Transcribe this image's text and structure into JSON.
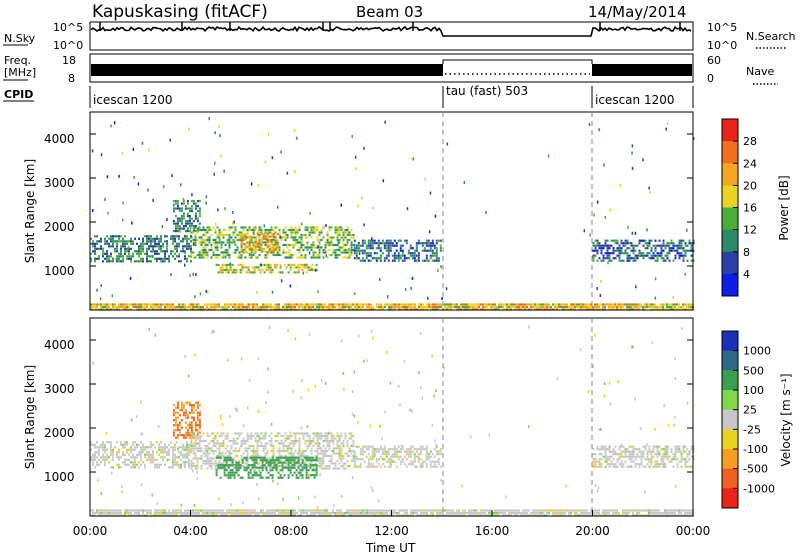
{
  "header": {
    "title": "Kapuskasing (fitACF)",
    "beam": "Beam 03",
    "date": "14/May/2014"
  },
  "noise_panel": {
    "left_label": "N.Sky",
    "left_ticks": [
      "10^5",
      "10^0"
    ],
    "right_label": "N.Search",
    "right_ticks": [
      "10^5",
      "10^0"
    ]
  },
  "freq_panel": {
    "left_label_1": "Freq.",
    "left_label_2": "[MHz]",
    "left_ticks": [
      "18",
      "8"
    ],
    "right_label": "Nave",
    "right_ticks": [
      "60",
      "0"
    ]
  },
  "cpid_panel": {
    "label": "CPID",
    "segments": [
      {
        "label": "icescan 1200",
        "start_hour": 0,
        "end_hour": 14
      },
      {
        "label": "tau (fast) 503",
        "start_hour": 14,
        "end_hour": 20
      },
      {
        "label": "icescan 1200",
        "start_hour": 20,
        "end_hour": 24
      }
    ]
  },
  "x_axis": {
    "label": "Time UT",
    "ticks": [
      "00:00",
      "04:00",
      "08:00",
      "12:00",
      "16:00",
      "20:00",
      "00:00"
    ]
  },
  "power_colorbar": {
    "label": "Power [dB]",
    "ticks": [
      "28",
      "24",
      "20",
      "16",
      "12",
      "8",
      "4"
    ],
    "colors": [
      "#0b1fe6",
      "#2f3fa8",
      "#2a8a6a",
      "#4cae3a",
      "#e8d421",
      "#f5a623",
      "#f07020",
      "#e8251b"
    ]
  },
  "velocity_colorbar": {
    "label": "Velocity [m s⁻¹]",
    "ticks": [
      "1000",
      "500",
      "100",
      "25",
      "-25",
      "-100",
      "-500",
      "-1000"
    ],
    "colors": [
      "#1b2fb8",
      "#2d6a8a",
      "#3aa050",
      "#7ed84a",
      "#c8c8c8",
      "#e8d421",
      "#f5a020",
      "#f06020",
      "#e8251b"
    ]
  },
  "chart_data": [
    {
      "type": "heatmap",
      "title": "Power",
      "xlabel": "Time UT",
      "ylabel": "Slant Range [km]",
      "x_unit": "hour UT",
      "xlim": [
        0,
        24
      ],
      "ylim": [
        0,
        4500
      ],
      "y_ticks": [
        "1000",
        "2000",
        "3000",
        "4000"
      ],
      "colorbar_range_dB": [
        0,
        32
      ],
      "regions": [
        {
          "start_hour": 0.0,
          "end_hour": 4.0,
          "min_km": 1100,
          "max_km": 1700,
          "value": 10
        },
        {
          "start_hour": 3.3,
          "end_hour": 4.4,
          "min_km": 1800,
          "max_km": 2500,
          "value": 10
        },
        {
          "start_hour": 4.0,
          "end_hour": 10.5,
          "min_km": 1200,
          "max_km": 1900,
          "value": 14
        },
        {
          "start_hour": 5.0,
          "end_hour": 9.0,
          "min_km": 850,
          "max_km": 1050,
          "value": 18
        },
        {
          "start_hour": 6.0,
          "end_hour": 7.5,
          "min_km": 1350,
          "max_km": 1750,
          "value": 22
        },
        {
          "start_hour": 10.5,
          "end_hour": 14.0,
          "min_km": 1100,
          "max_km": 1600,
          "value": 8
        },
        {
          "start_hour": 20.0,
          "end_hour": 24.0,
          "min_km": 1100,
          "max_km": 1600,
          "value": 8
        },
        {
          "start_hour": 0.0,
          "end_hour": 24.0,
          "min_km": 0,
          "max_km": 150,
          "value": 20
        }
      ]
    },
    {
      "type": "heatmap",
      "title": "Velocity",
      "xlabel": "Time UT",
      "ylabel": "Slant Range [km]",
      "x_unit": "hour UT",
      "xlim": [
        0,
        24
      ],
      "ylim": [
        0,
        4500
      ],
      "y_ticks": [
        "1000",
        "2000",
        "3000",
        "4000"
      ],
      "regions": [
        {
          "start_hour": 0.0,
          "end_hour": 4.0,
          "min_km": 1100,
          "max_km": 1700,
          "value": 0
        },
        {
          "start_hour": 3.3,
          "end_hour": 4.4,
          "min_km": 1800,
          "max_km": 2600,
          "value": -500
        },
        {
          "start_hour": 4.0,
          "end_hour": 10.5,
          "min_km": 1100,
          "max_km": 1900,
          "value": 0
        },
        {
          "start_hour": 5.0,
          "end_hour": 9.0,
          "min_km": 850,
          "max_km": 1350,
          "value": 150
        },
        {
          "start_hour": 10.5,
          "end_hour": 14.0,
          "min_km": 1100,
          "max_km": 1600,
          "value": 0
        },
        {
          "start_hour": 20.0,
          "end_hour": 24.0,
          "min_km": 1100,
          "max_km": 1600,
          "value": 0
        },
        {
          "start_hour": 0.0,
          "end_hour": 24.0,
          "min_km": 0,
          "max_km": 150,
          "value": 0
        }
      ]
    }
  ]
}
